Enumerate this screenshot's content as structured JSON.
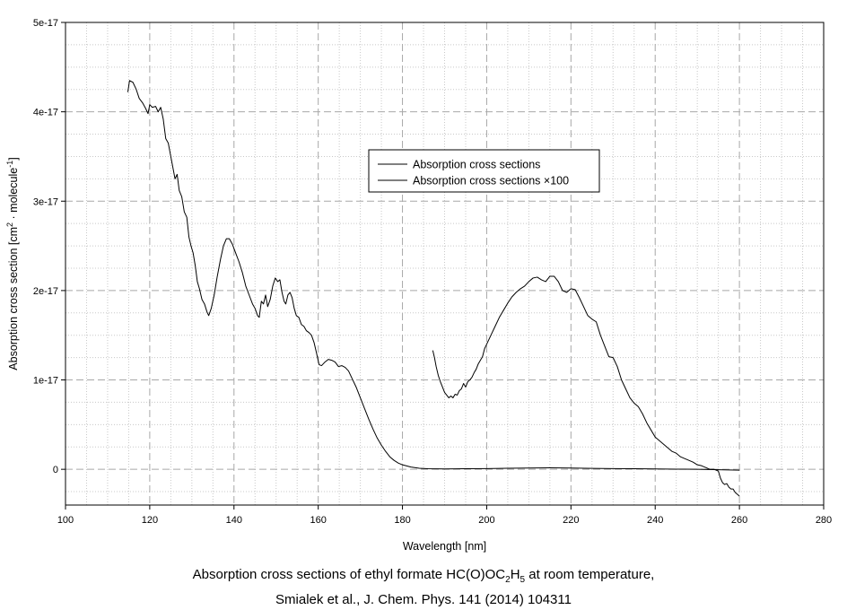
{
  "chart_data": {
    "type": "line",
    "xlabel": "Wavelength [nm]",
    "ylabel_parts": [
      "Absorption cross section [cm",
      "2",
      " · molecule",
      "-1",
      "]"
    ],
    "xlim": [
      100,
      280
    ],
    "ylim": [
      -4e-18,
      5e-17
    ],
    "x_ticks": [
      100,
      120,
      140,
      160,
      180,
      200,
      220,
      240,
      260,
      280
    ],
    "y_ticks": [
      {
        "value": 0,
        "label": "0"
      },
      {
        "value": 1e-17,
        "label": "1e-17"
      },
      {
        "value": 2e-17,
        "label": "2e-17"
      },
      {
        "value": 3e-17,
        "label": "3e-17"
      },
      {
        "value": 4e-17,
        "label": "4e-17"
      },
      {
        "value": 5e-17,
        "label": "5e-17"
      }
    ],
    "grid": true,
    "legend": {
      "position": "center"
    },
    "series": [
      {
        "name": "Absorption cross sections",
        "color": "#000000",
        "points": [
          [
            114.8,
            4.22e-17
          ],
          [
            115.2,
            4.35e-17
          ],
          [
            116.0,
            4.33e-17
          ],
          [
            116.8,
            4.25e-17
          ],
          [
            117.5,
            4.15e-17
          ],
          [
            118.3,
            4.1e-17
          ],
          [
            119.0,
            4.04e-17
          ],
          [
            119.6,
            3.98e-17
          ],
          [
            120.0,
            4.08e-17
          ],
          [
            120.6,
            4.05e-17
          ],
          [
            121.4,
            4.06e-17
          ],
          [
            122.0,
            4e-17
          ],
          [
            122.6,
            4.05e-17
          ],
          [
            123.2,
            3.92e-17
          ],
          [
            123.8,
            3.7e-17
          ],
          [
            124.4,
            3.65e-17
          ],
          [
            125.0,
            3.5e-17
          ],
          [
            125.6,
            3.35e-17
          ],
          [
            126.0,
            3.25e-17
          ],
          [
            126.5,
            3.3e-17
          ],
          [
            127.0,
            3.12e-17
          ],
          [
            127.6,
            3.05e-17
          ],
          [
            128.2,
            2.88e-17
          ],
          [
            128.8,
            2.82e-17
          ],
          [
            129.3,
            2.6e-17
          ],
          [
            129.8,
            2.5e-17
          ],
          [
            130.3,
            2.42e-17
          ],
          [
            130.8,
            2.28e-17
          ],
          [
            131.3,
            2.1e-17
          ],
          [
            131.8,
            2.02e-17
          ],
          [
            132.4,
            1.9e-17
          ],
          [
            133.0,
            1.85e-17
          ],
          [
            133.6,
            1.76e-17
          ],
          [
            134.0,
            1.72e-17
          ],
          [
            134.6,
            1.8e-17
          ],
          [
            135.3,
            1.95e-17
          ],
          [
            136.0,
            2.15e-17
          ],
          [
            136.8,
            2.35e-17
          ],
          [
            137.5,
            2.5e-17
          ],
          [
            138.2,
            2.58e-17
          ],
          [
            138.9,
            2.58e-17
          ],
          [
            139.6,
            2.52e-17
          ],
          [
            140.4,
            2.42e-17
          ],
          [
            141.2,
            2.32e-17
          ],
          [
            142.0,
            2.2e-17
          ],
          [
            142.8,
            2.05e-17
          ],
          [
            143.6,
            1.95e-17
          ],
          [
            144.4,
            1.85e-17
          ],
          [
            145.0,
            1.8e-17
          ],
          [
            145.6,
            1.72e-17
          ],
          [
            146.0,
            1.7e-17
          ],
          [
            146.5,
            1.88e-17
          ],
          [
            147.0,
            1.85e-17
          ],
          [
            147.5,
            1.95e-17
          ],
          [
            148.0,
            1.82e-17
          ],
          [
            148.6,
            1.9e-17
          ],
          [
            149.2,
            2.05e-17
          ],
          [
            149.8,
            2.14e-17
          ],
          [
            150.4,
            2.1e-17
          ],
          [
            150.9,
            2.12e-17
          ],
          [
            151.4,
            1.98e-17
          ],
          [
            151.9,
            1.88e-17
          ],
          [
            152.3,
            1.85e-17
          ],
          [
            152.8,
            1.95e-17
          ],
          [
            153.3,
            1.98e-17
          ],
          [
            153.8,
            1.92e-17
          ],
          [
            154.3,
            1.8e-17
          ],
          [
            154.8,
            1.72e-17
          ],
          [
            155.4,
            1.7e-17
          ],
          [
            156.0,
            1.62e-17
          ],
          [
            156.6,
            1.6e-17
          ],
          [
            157.2,
            1.55e-17
          ],
          [
            157.8,
            1.53e-17
          ],
          [
            158.4,
            1.5e-17
          ],
          [
            159.0,
            1.42e-17
          ],
          [
            159.6,
            1.3e-17
          ],
          [
            160.2,
            1.17e-17
          ],
          [
            160.8,
            1.16e-17
          ],
          [
            161.6,
            1.2e-17
          ],
          [
            162.4,
            1.23e-17
          ],
          [
            163.2,
            1.22e-17
          ],
          [
            164.0,
            1.2e-17
          ],
          [
            164.8,
            1.15e-17
          ],
          [
            165.6,
            1.16e-17
          ],
          [
            166.4,
            1.14e-17
          ],
          [
            167.2,
            1.1e-17
          ],
          [
            168.0,
            1.02e-17
          ],
          [
            169.0,
            9.2e-18
          ],
          [
            170.0,
            8e-18
          ],
          [
            171.0,
            6.8e-18
          ],
          [
            172.0,
            5.6e-18
          ],
          [
            173.0,
            4.5e-18
          ],
          [
            174.0,
            3.5e-18
          ],
          [
            175.0,
            2.7e-18
          ],
          [
            176.0,
            2e-18
          ],
          [
            177.0,
            1.4e-18
          ],
          [
            178.0,
            1e-18
          ],
          [
            179.0,
            7e-19
          ],
          [
            180.0,
            5e-19
          ],
          [
            182.0,
            2.5e-19
          ],
          [
            184.0,
            1.2e-19
          ],
          [
            186.0,
            6e-20
          ],
          [
            188.0,
            5e-20
          ],
          [
            190.0,
            4e-20
          ],
          [
            195.0,
            6e-20
          ],
          [
            200.0,
            8e-20
          ],
          [
            205.0,
            1.2e-19
          ],
          [
            210.0,
            1.4e-19
          ],
          [
            215.0,
            1.6e-19
          ],
          [
            220.0,
            1.4e-19
          ],
          [
            225.0,
            1e-19
          ],
          [
            230.0,
            8e-20
          ],
          [
            235.0,
            6e-20
          ],
          [
            240.0,
            4e-20
          ],
          [
            245.0,
            2e-20
          ],
          [
            250.0,
            0.0
          ],
          [
            255.0,
            -5e-20
          ],
          [
            260.0,
            -1e-19
          ]
        ]
      },
      {
        "name": "Absorption cross sections ×100",
        "color": "#000000",
        "points": [
          [
            187.2,
            1.33e-17
          ],
          [
            187.6,
            1.25e-17
          ],
          [
            188.0,
            1.15e-17
          ],
          [
            188.5,
            1.05e-17
          ],
          [
            189.0,
            9.8e-18
          ],
          [
            189.5,
            9.2e-18
          ],
          [
            190.0,
            8.6e-18
          ],
          [
            190.5,
            8.3e-18
          ],
          [
            191.0,
            8e-18
          ],
          [
            191.5,
            8.2e-18
          ],
          [
            192.0,
            8e-18
          ],
          [
            192.5,
            8.4e-18
          ],
          [
            193.0,
            8.3e-18
          ],
          [
            193.5,
            8.8e-18
          ],
          [
            194.0,
            9e-18
          ],
          [
            194.5,
            9.6e-18
          ],
          [
            195.0,
            9.2e-18
          ],
          [
            195.5,
            9.8e-18
          ],
          [
            196.0,
            1e-17
          ],
          [
            196.5,
            1.03e-17
          ],
          [
            197.0,
            1.08e-17
          ],
          [
            197.5,
            1.12e-17
          ],
          [
            198.0,
            1.18e-17
          ],
          [
            198.5,
            1.22e-17
          ],
          [
            199.0,
            1.26e-17
          ],
          [
            199.5,
            1.35e-17
          ],
          [
            200.0,
            1.4e-17
          ],
          [
            201.0,
            1.5e-17
          ],
          [
            202.0,
            1.6e-17
          ],
          [
            203.0,
            1.7e-17
          ],
          [
            204.0,
            1.78e-17
          ],
          [
            205.0,
            1.86e-17
          ],
          [
            206.0,
            1.93e-17
          ],
          [
            207.0,
            1.98e-17
          ],
          [
            208.0,
            2.02e-17
          ],
          [
            209.0,
            2.05e-17
          ],
          [
            210.0,
            2.1e-17
          ],
          [
            211.0,
            2.14e-17
          ],
          [
            212.0,
            2.15e-17
          ],
          [
            213.0,
            2.12e-17
          ],
          [
            214.0,
            2.1e-17
          ],
          [
            215.0,
            2.16e-17
          ],
          [
            216.0,
            2.16e-17
          ],
          [
            217.0,
            2.1e-17
          ],
          [
            218.0,
            2e-17
          ],
          [
            219.0,
            1.98e-17
          ],
          [
            220.0,
            2.02e-17
          ],
          [
            221.0,
            2.01e-17
          ],
          [
            222.0,
            1.92e-17
          ],
          [
            223.0,
            1.82e-17
          ],
          [
            224.0,
            1.72e-17
          ],
          [
            225.0,
            1.68e-17
          ],
          [
            226.0,
            1.65e-17
          ],
          [
            227.0,
            1.5e-17
          ],
          [
            228.0,
            1.38e-17
          ],
          [
            229.0,
            1.26e-17
          ],
          [
            230.0,
            1.25e-17
          ],
          [
            231.0,
            1.15e-17
          ],
          [
            232.0,
            1e-17
          ],
          [
            233.0,
            9e-18
          ],
          [
            234.0,
            8e-18
          ],
          [
            235.0,
            7.4e-18
          ],
          [
            236.0,
            7e-18
          ],
          [
            237.0,
            6.2e-18
          ],
          [
            238.0,
            5.2e-18
          ],
          [
            239.0,
            4.4e-18
          ],
          [
            240.0,
            3.6e-18
          ],
          [
            241.0,
            3.2e-18
          ],
          [
            242.0,
            2.8e-18
          ],
          [
            243.0,
            2.4e-18
          ],
          [
            244.0,
            2e-18
          ],
          [
            245.0,
            1.8e-18
          ],
          [
            246.0,
            1.4e-18
          ],
          [
            247.0,
            1.2e-18
          ],
          [
            248.0,
            1e-18
          ],
          [
            249.0,
            8e-19
          ],
          [
            250.0,
            5e-19
          ],
          [
            251.0,
            4e-19
          ],
          [
            252.0,
            2e-19
          ],
          [
            253.0,
            0.0
          ],
          [
            254.0,
            0.0
          ],
          [
            255.0,
            -2e-19
          ],
          [
            255.5,
            -1e-18
          ],
          [
            256.0,
            -1.5e-18
          ],
          [
            256.5,
            -1.7e-18
          ],
          [
            257.0,
            -1.6e-18
          ],
          [
            257.5,
            -2e-18
          ],
          [
            258.0,
            -2.2e-18
          ],
          [
            258.5,
            -2.2e-18
          ],
          [
            259.0,
            -2.6e-18
          ],
          [
            259.5,
            -2.8e-18
          ],
          [
            260.0,
            -3e-18
          ]
        ]
      }
    ]
  },
  "caption": {
    "line1_pre": "Absorption cross sections of ethyl formate HC(O)OC",
    "sub1": "2",
    "line1_mid": "H",
    "sub2": "5",
    "line1_post": " at room temperature,",
    "line2": "Smialek et al., J. Chem. Phys. 141 (2014) 104311"
  }
}
